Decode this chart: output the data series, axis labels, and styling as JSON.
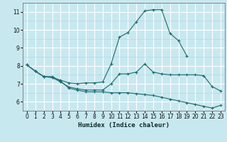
{
  "xlabel": "Humidex (Indice chaleur)",
  "x_values": [
    0,
    1,
    2,
    3,
    4,
    5,
    6,
    7,
    8,
    9,
    10,
    11,
    12,
    13,
    14,
    15,
    16,
    17,
    18,
    19,
    20,
    21,
    22,
    23
  ],
  "line1_y": [
    8.05,
    7.7,
    7.4,
    7.4,
    7.15,
    6.75,
    6.65,
    6.55,
    6.55,
    6.55,
    6.5,
    6.5,
    6.5,
    6.45,
    6.4,
    6.35,
    6.25,
    6.15,
    6.05,
    5.95,
    5.85,
    5.75,
    5.65,
    5.8
  ],
  "line2_y": [
    8.05,
    7.7,
    7.4,
    7.35,
    7.1,
    6.82,
    6.72,
    6.65,
    6.65,
    6.65,
    7.0,
    7.55,
    7.55,
    7.65,
    8.1,
    7.65,
    7.55,
    7.5,
    7.5,
    7.5,
    7.5,
    7.45,
    6.85,
    6.6
  ],
  "line3_y": [
    8.05,
    7.7,
    7.4,
    7.35,
    7.2,
    7.05,
    7.0,
    7.05,
    7.05,
    7.1,
    8.1,
    9.6,
    9.85,
    10.45,
    11.05,
    11.12,
    11.12,
    9.8,
    9.4,
    8.55,
    null,
    null,
    null,
    null
  ],
  "bg_color": "#c8e8f0",
  "line_color": "#1a6b6b",
  "grid_major_color": "#ffffff",
  "grid_minor_color": "#b0d4e0",
  "ylim": [
    5.5,
    11.5
  ],
  "xlim": [
    -0.5,
    23.5
  ],
  "yticks": [
    6,
    7,
    8,
    9,
    10,
    11
  ],
  "xticks": [
    0,
    1,
    2,
    3,
    4,
    5,
    6,
    7,
    8,
    9,
    10,
    11,
    12,
    13,
    14,
    15,
    16,
    17,
    18,
    19,
    20,
    21,
    22,
    23
  ],
  "tick_fontsize": 5.5,
  "label_fontsize": 6.5
}
